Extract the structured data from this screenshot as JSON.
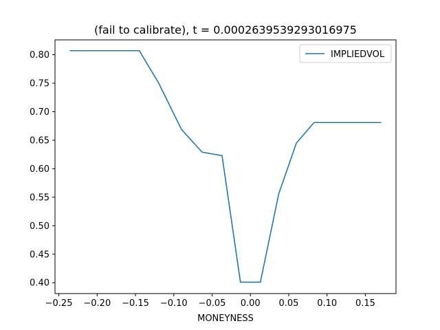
{
  "chart_data": {
    "type": "line",
    "title": "(fail to calibrate), t = 0.0002639539293016975",
    "xlabel": "MONEYNESS",
    "ylabel": "",
    "xlim": [
      -0.255,
      0.19
    ],
    "ylim": [
      0.381,
      0.826
    ],
    "x_ticks": [
      -0.25,
      -0.2,
      -0.15,
      -0.1,
      -0.05,
      0.0,
      0.05,
      0.1,
      0.15
    ],
    "x_tick_labels": [
      "−0.25",
      "−0.20",
      "−0.15",
      "−0.10",
      "−0.05",
      "0.00",
      "0.05",
      "0.10",
      "0.15"
    ],
    "y_ticks": [
      0.4,
      0.45,
      0.5,
      0.55,
      0.6,
      0.65,
      0.7,
      0.75,
      0.8
    ],
    "y_tick_labels": [
      "0.40",
      "0.45",
      "0.50",
      "0.55",
      "0.60",
      "0.65",
      "0.70",
      "0.75",
      "0.80"
    ],
    "grid": false,
    "legend": {
      "position": "top-right"
    },
    "series": [
      {
        "name": "IMPLIEDVOL",
        "color": "#1f77b4",
        "x": [
          -0.235,
          -0.145,
          -0.12,
          -0.09,
          -0.063,
          -0.037,
          -0.013,
          0.013,
          0.037,
          0.06,
          0.083,
          0.17
        ],
        "y": [
          0.807,
          0.807,
          0.751,
          0.669,
          0.629,
          0.623,
          0.401,
          0.401,
          0.556,
          0.645,
          0.681,
          0.681
        ]
      }
    ]
  }
}
